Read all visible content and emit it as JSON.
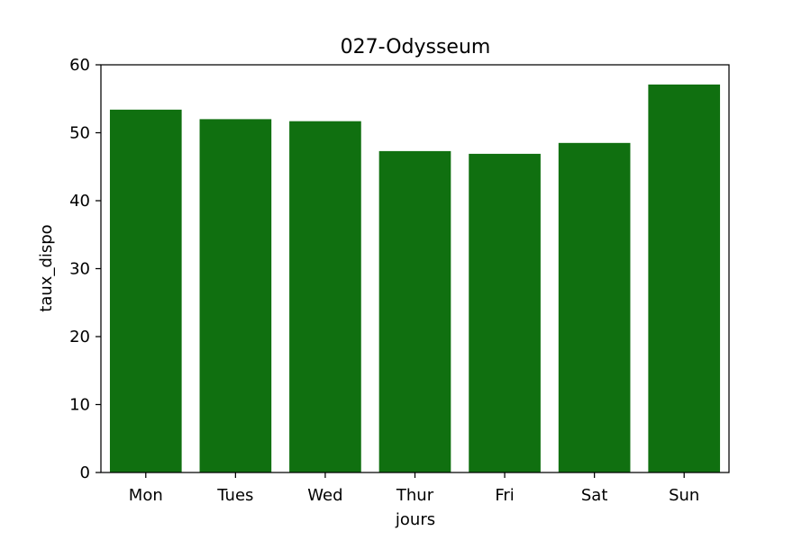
{
  "chart_data": {
    "type": "bar",
    "title": "027-Odysseum",
    "xlabel": "jours",
    "ylabel": "taux_dispo",
    "categories": [
      "Mon",
      "Tues",
      "Wed",
      "Thur",
      "Fri",
      "Sat",
      "Sun"
    ],
    "values": [
      53.4,
      52.0,
      51.7,
      47.3,
      46.9,
      48.5,
      57.1
    ],
    "ylim": [
      0,
      60
    ],
    "yticks": [
      0,
      10,
      20,
      30,
      40,
      50,
      60
    ],
    "bar_color": "#107010",
    "grid": false,
    "legend": "none"
  }
}
